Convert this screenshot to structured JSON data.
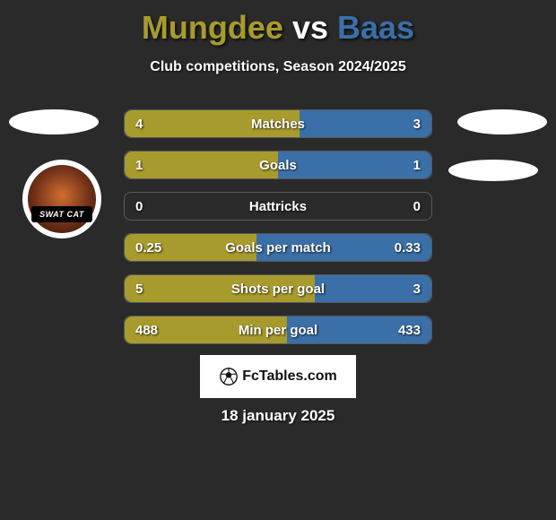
{
  "title": {
    "player1": "Mungdee",
    "vs": "vs",
    "player2": "Baas"
  },
  "subtitle": "Club competitions, Season 2024/2025",
  "colors": {
    "player1": "#a89b2e",
    "player2": "#3a6fa8",
    "bar_border": "#7a7a7a",
    "background": "#2a2a2a"
  },
  "logo": {
    "band_text": "SWAT CAT"
  },
  "stats": [
    {
      "label": "Matches",
      "left_val": "4",
      "right_val": "3",
      "left_pct": 57,
      "right_pct": 43
    },
    {
      "label": "Goals",
      "left_val": "1",
      "right_val": "1",
      "left_pct": 50,
      "right_pct": 50
    },
    {
      "label": "Hattricks",
      "left_val": "0",
      "right_val": "0",
      "left_pct": 0,
      "right_pct": 0
    },
    {
      "label": "Goals per match",
      "left_val": "0.25",
      "right_val": "0.33",
      "left_pct": 43,
      "right_pct": 57
    },
    {
      "label": "Shots per goal",
      "left_val": "5",
      "right_val": "3",
      "left_pct": 62,
      "right_pct": 38
    },
    {
      "label": "Min per goal",
      "left_val": "488",
      "right_val": "433",
      "left_pct": 53,
      "right_pct": 47
    }
  ],
  "footer_brand": "FcTables.com",
  "date": "18 january 2025"
}
